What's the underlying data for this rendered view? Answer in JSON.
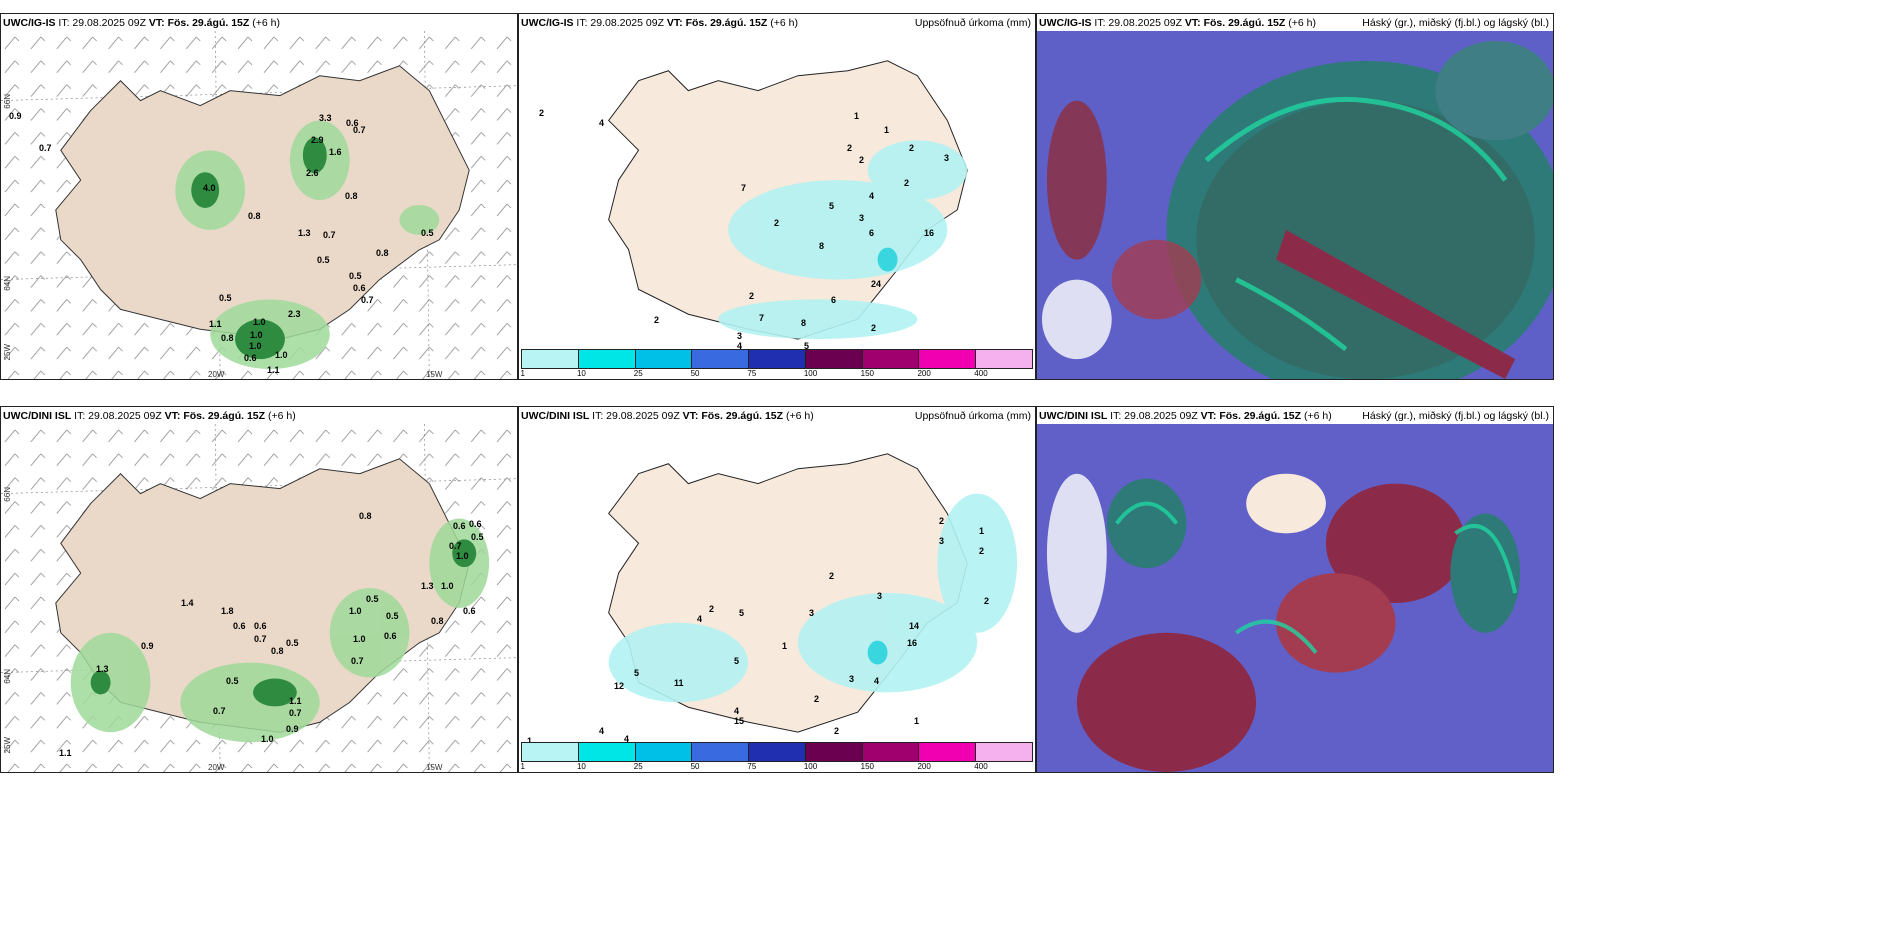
{
  "model_top": "UWC/IG-IS",
  "model_bottom": "UWC/DINI ISL",
  "it_text": "IT: 29.08.2025 09Z",
  "vt_label": "VT: Fös. 29.ágú. 15Z",
  "lead": "(+6 h)",
  "precip_title": "Uppsöfnuð úrkoma (mm)",
  "cloud_title": "Háský (gr.), miðský (fj.bl.) og lágský (bl.)",
  "ticks": {
    "lat66": "66N",
    "lat64": "64N",
    "lon25": "25W",
    "lon20": "20W",
    "lon15": "15W"
  },
  "colorbar": {
    "labels": [
      "1",
      "10",
      "25",
      "50",
      "75",
      "100",
      "150",
      "200",
      "400"
    ],
    "colors": [
      "#b8f4f4",
      "#00e6e6",
      "#00c0e8",
      "#3a6ae0",
      "#1f2fb0",
      "#6a004f",
      "#a0006e",
      "#f000b0",
      "#f5b0ee"
    ]
  },
  "labels": {
    "wind_top": [
      "0.9",
      "0.7",
      "4.0",
      "3.3",
      "0.6",
      "0.7",
      "2.9",
      "1.6",
      "2.6",
      "0.8",
      "0.8",
      "1.3",
      "0.7",
      "0.5",
      "0.5",
      "0.8",
      "0.5",
      "0.6",
      "0.7",
      "0.5",
      "1.0",
      "2.3",
      "1.1",
      "1.0",
      "0.8",
      "1.0",
      "0.6",
      "1.0",
      "1.1"
    ],
    "precip_top": [
      "2",
      "4",
      "7",
      "1",
      "1",
      "2",
      "2",
      "2",
      "3",
      "2",
      "5",
      "4",
      "2",
      "3",
      "6",
      "8",
      "16",
      "24",
      "2",
      "6",
      "7",
      "8",
      "3",
      "4",
      "2",
      "5",
      "2",
      "3"
    ],
    "wind_bottom": [
      "0.8",
      "0.6",
      "0.6",
      "0.5",
      "0.7",
      "1.0",
      "1.3",
      "1.0",
      "1.4",
      "1.8",
      "0.6",
      "0.5",
      "1.0",
      "0.6",
      "0.6",
      "0.8",
      "0.5",
      "0.7",
      "0.6",
      "1.0",
      "0.9",
      "0.8",
      "0.5",
      "1.3",
      "0.7",
      "0.5",
      "0.7",
      "0.9",
      "1.0",
      "1.1",
      "0.7",
      "1.1"
    ],
    "precip_bottom": [
      "2",
      "1",
      "3",
      "2",
      "2",
      "2",
      "5",
      "3",
      "4",
      "1",
      "5",
      "16",
      "11",
      "5",
      "12",
      "4",
      "15",
      "2",
      "3",
      "14",
      "3",
      "4",
      "2",
      "1",
      "2",
      "2",
      "1",
      "4",
      "4",
      "1"
    ]
  }
}
